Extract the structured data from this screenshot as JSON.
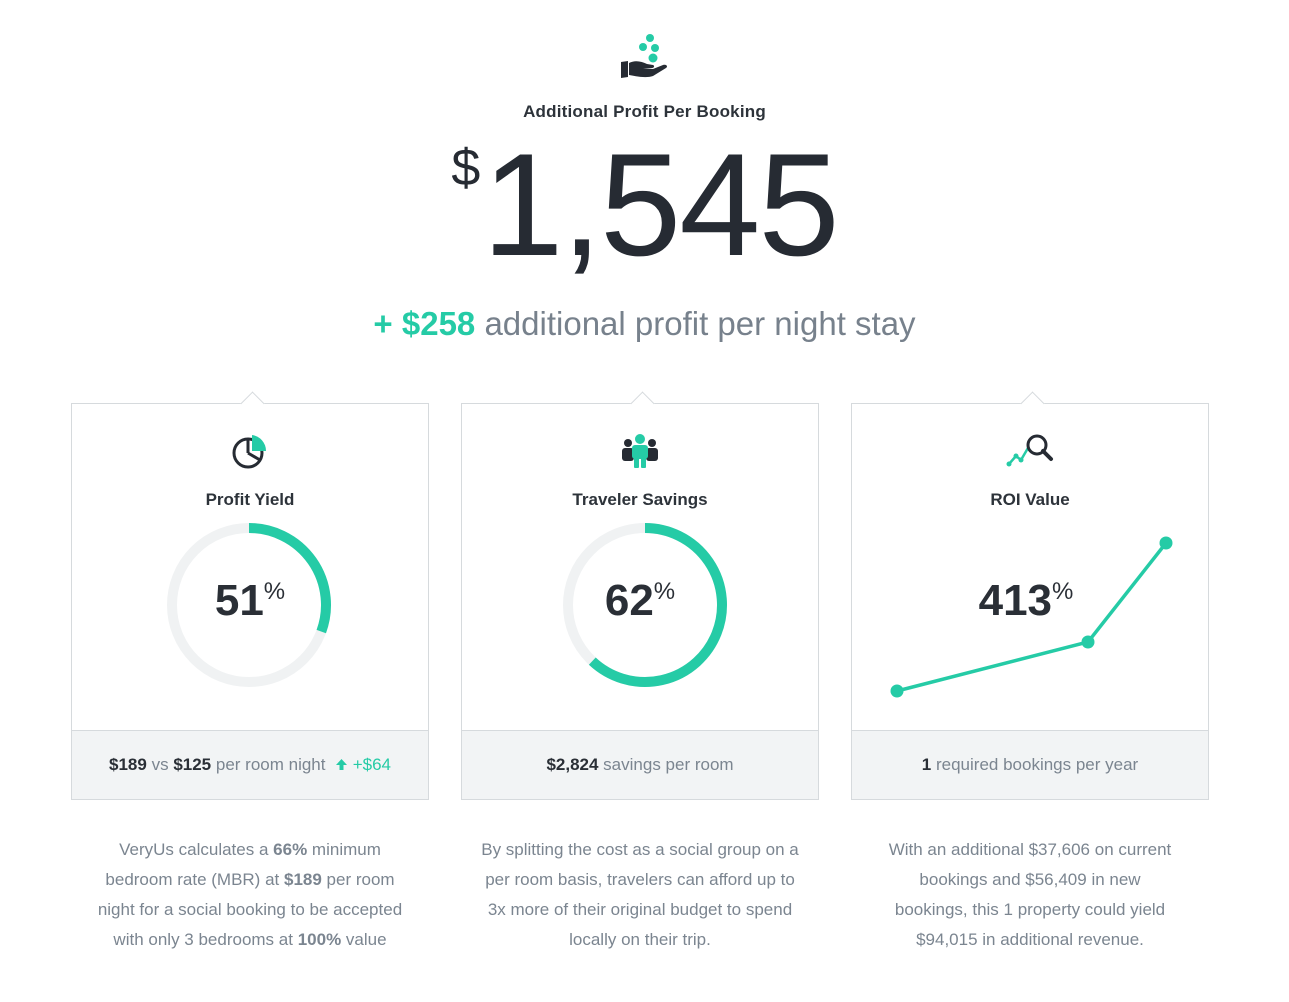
{
  "hero": {
    "icon": "hand-coins-icon",
    "label": "Additional Profit Per Booking",
    "currency": "$",
    "amount": "1,545",
    "sub_accent": "+ $258",
    "sub_text": "additional profit per night stay"
  },
  "colors": {
    "accent": "#25cba6",
    "dark": "#2a2f36",
    "muted": "#7b8590",
    "ring_track": "#f0f2f3"
  },
  "cards": [
    {
      "icon": "pie-chart-icon",
      "title": "Profit Yield",
      "value": "51",
      "unit": "%",
      "progress_fraction": 0.51,
      "footer": {
        "a": "$189",
        "vs": "vs",
        "b": "$125",
        "tail": "per room night",
        "delta_icon": "arrow-up-icon",
        "delta": "+$64"
      },
      "description": {
        "p1": "VeryUs calculates a",
        "b1": "66%",
        "p2": "minimum bedroom rate (MBR) at",
        "b2": "$189",
        "p3": "per room night for a social booking to be accepted with only 3 bedrooms at",
        "b3": "100%",
        "p4": "value"
      }
    },
    {
      "icon": "group-people-icon",
      "title": "Traveler Savings",
      "value": "62",
      "unit": "%",
      "progress_fraction": 0.62,
      "footer": {
        "a": "$2,824",
        "tail": "savings per room"
      },
      "description": {
        "text": "By splitting the cost as a social group on a per room basis, travelers can afford up to 3x more of their original budget to spend locally on their trip."
      }
    },
    {
      "icon": "line-chart-magnifier-icon",
      "title": "ROI Value",
      "value": "413",
      "unit": "%",
      "footer": {
        "a": "1",
        "tail": "required bookings per year"
      },
      "description": {
        "text": "With an additional $37,606 on current bookings and $56,409 in new bookings, this 1 property could yield $94,015 in additional revenue."
      }
    }
  ]
}
